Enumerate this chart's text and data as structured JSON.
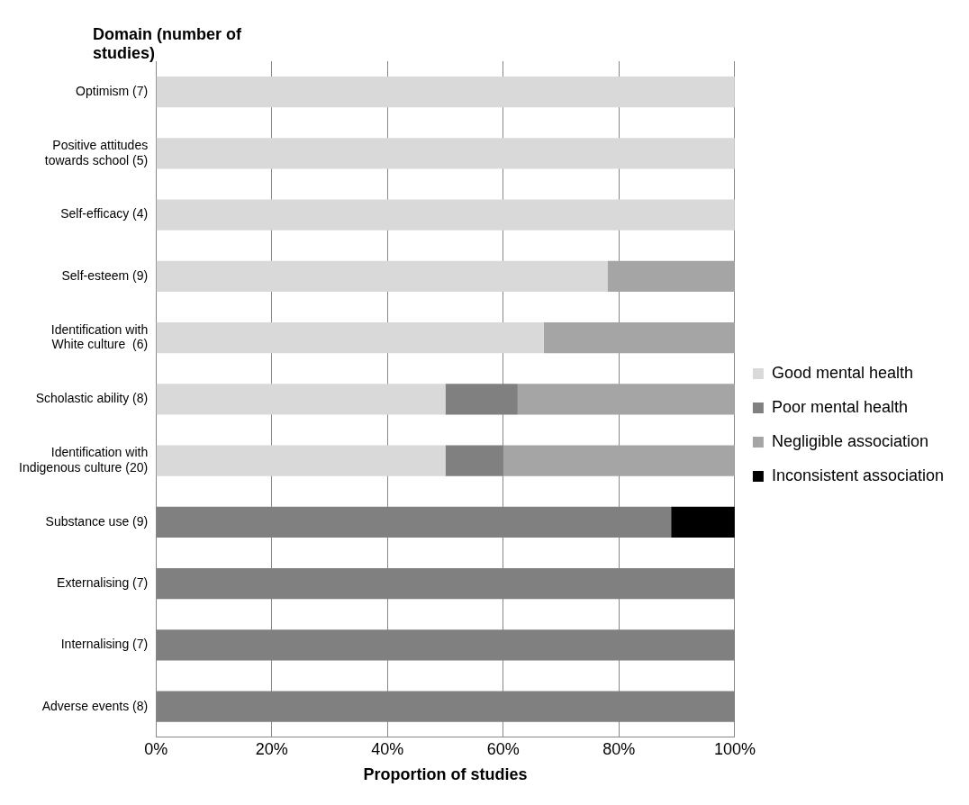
{
  "chart_data": {
    "type": "bar",
    "orientation": "horizontal",
    "stacked": true,
    "ylabel": "Domain (number of studies)",
    "xlabel": "Proportion of studies",
    "categories": [
      "Optimism (7)",
      "Positive attitudes towards school (5)",
      "Self-efficacy (4)",
      "Self-esteem (9)",
      "Identification with White culture  (6)",
      "Scholastic ability (8)",
      "Identification with Indigenous culture (20)",
      "Substance use (9)",
      "Externalising (7)",
      "Internalising (7)",
      "Adverse events (8)"
    ],
    "series": [
      {
        "name": "Good mental health",
        "color": "#d9d9d9",
        "values": [
          100,
          100,
          100,
          78,
          67,
          50,
          50,
          null,
          null,
          null,
          null
        ]
      },
      {
        "name": "Poor mental health",
        "color": "#808080",
        "values": [
          null,
          null,
          null,
          null,
          null,
          12.5,
          10,
          89,
          100,
          100,
          100
        ]
      },
      {
        "name": "Negligible association",
        "color": "#a5a5a5",
        "values": [
          null,
          null,
          null,
          22,
          33,
          37.5,
          40,
          null,
          null,
          null,
          null
        ]
      },
      {
        "name": "Inconsistent association",
        "color": "#000000",
        "values": [
          null,
          null,
          null,
          null,
          null,
          null,
          null,
          11,
          null,
          null,
          null
        ]
      }
    ],
    "xlim": [
      0,
      100
    ],
    "xticks": [
      {
        "value": 0,
        "label": "0%"
      },
      {
        "value": 20,
        "label": "20%"
      },
      {
        "value": 40,
        "label": "40%"
      },
      {
        "value": 60,
        "label": "60%"
      },
      {
        "value": 80,
        "label": "80%"
      },
      {
        "value": 100,
        "label": "100%"
      }
    ],
    "grid": "x",
    "legend": "right"
  }
}
